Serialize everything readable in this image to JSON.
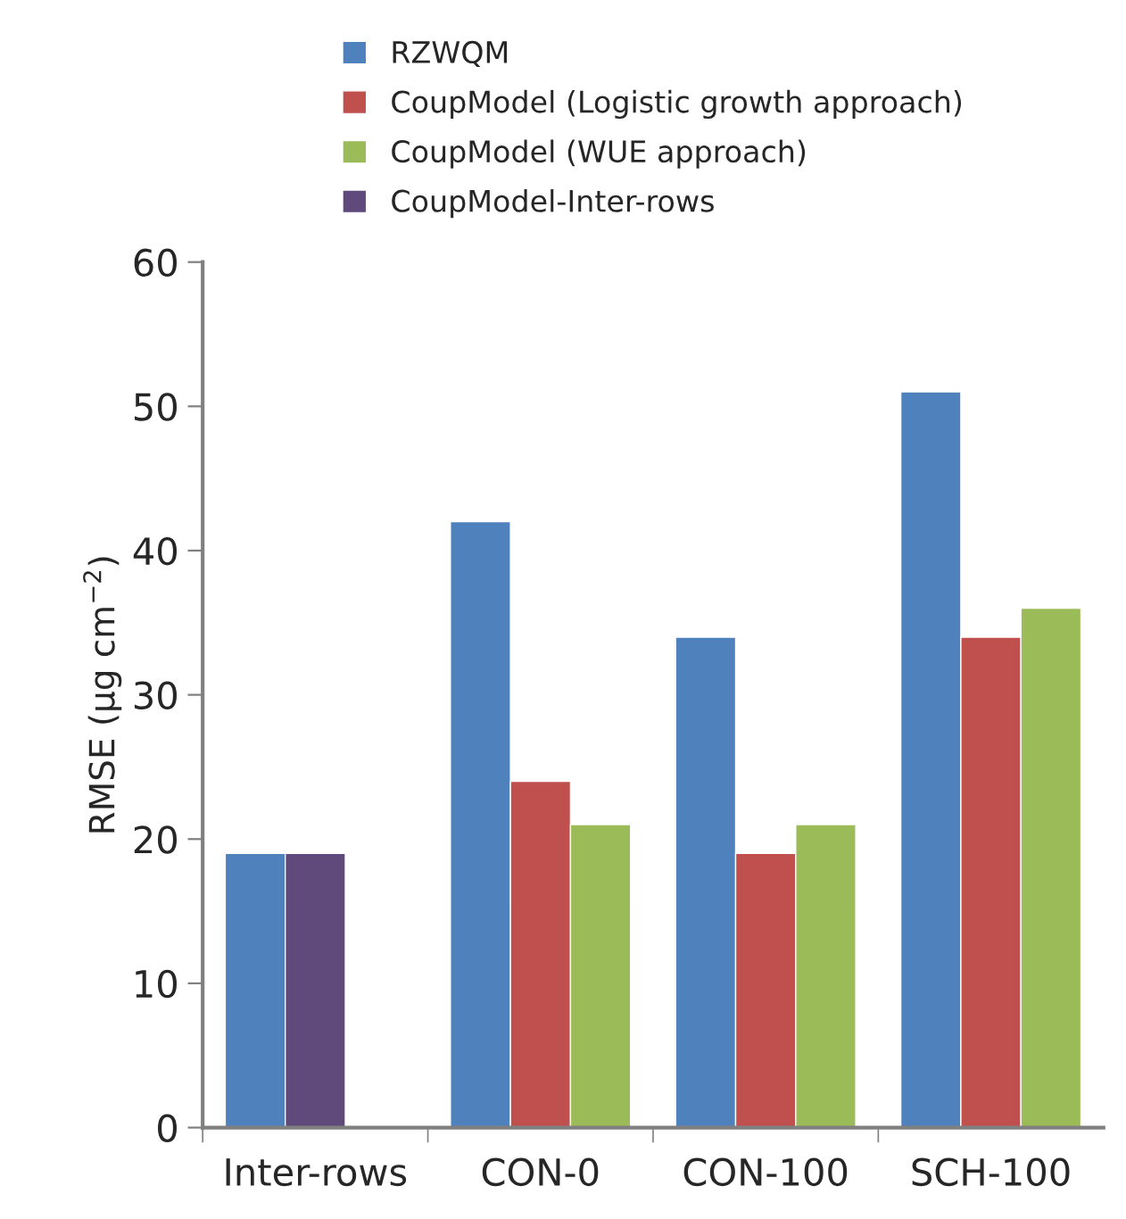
{
  "chart_data": {
    "type": "bar",
    "ylabel": "RMSE (µg cm$^{−2}$)",
    "categories": [
      "Inter-rows",
      "CON-0",
      "CON-100",
      "SCH-100"
    ],
    "series": [
      {
        "name": "RZWQM",
        "color": "#4f81bd",
        "values": [
          19,
          42,
          34,
          51
        ]
      },
      {
        "name": "CoupModel (Logistic growth approach)",
        "color": "#c0504d",
        "values": [
          null,
          24,
          19,
          34
        ]
      },
      {
        "name": "CoupModel (WUE approach)",
        "color": "#9bbb59",
        "values": [
          null,
          21,
          21,
          36
        ]
      },
      {
        "name": "CoupModel-Inter-rows",
        "color": "#604a7b",
        "values": [
          19,
          null,
          null,
          null
        ]
      }
    ],
    "ylim": [
      0,
      60
    ],
    "yticks": [
      0,
      10,
      20,
      30,
      40,
      50,
      60
    ],
    "grid": false,
    "legend": "top"
  }
}
